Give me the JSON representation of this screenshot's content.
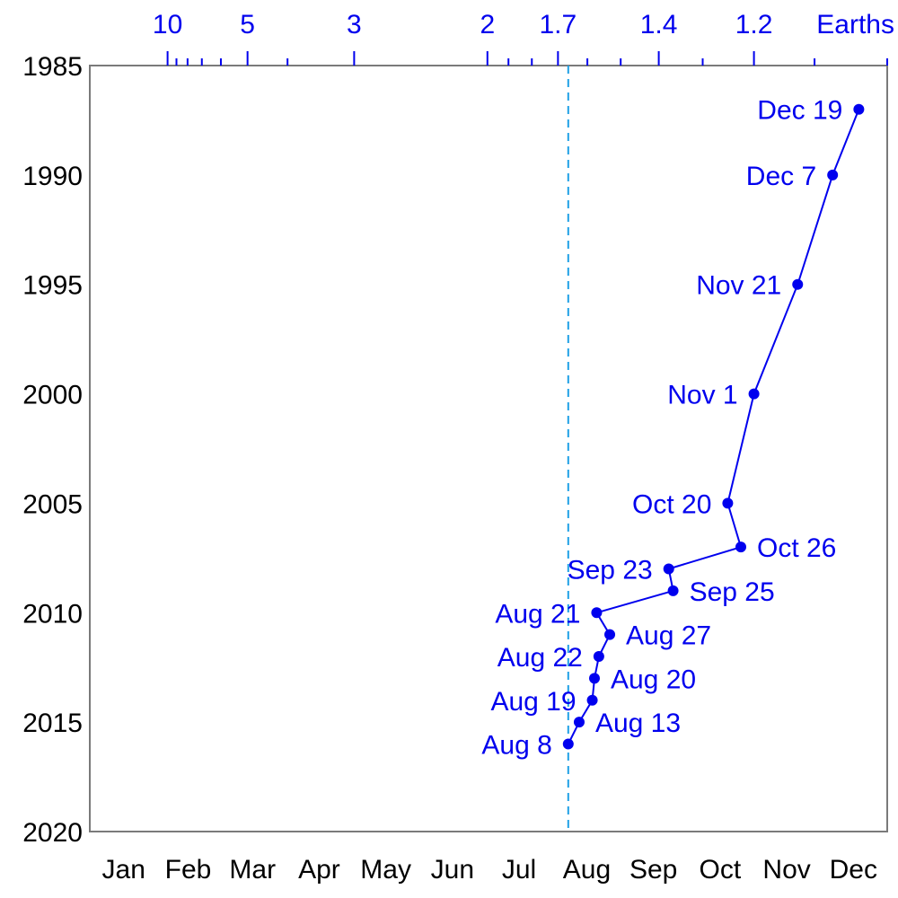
{
  "chart_data": {
    "type": "line",
    "title": "",
    "xlabel": "",
    "ylabel": "",
    "x_axis": {
      "categories": [
        "Jan",
        "Feb",
        "Mar",
        "Apr",
        "May",
        "Jun",
        "Jul",
        "Aug",
        "Sep",
        "Oct",
        "Nov",
        "Dec"
      ],
      "xlim_day_of_year": [
        1,
        366
      ]
    },
    "y_axis": {
      "ticks": [
        "1985",
        "1990",
        "1995",
        "2000",
        "2005",
        "2010",
        "2015",
        "2020"
      ],
      "ylim": [
        1985,
        2020
      ],
      "inverted": true
    },
    "top_axis": {
      "unit_label": "Earths",
      "labeled_ticks": [
        {
          "label": "10",
          "value": 10
        },
        {
          "label": "5",
          "value": 5
        },
        {
          "label": "3",
          "value": 3
        },
        {
          "label": "2",
          "value": 2
        },
        {
          "label": "1.7",
          "value": 1.7
        },
        {
          "label": "1.4",
          "value": 1.4
        },
        {
          "label": "1.2",
          "value": 1.2
        }
      ],
      "minor_ticks": [
        9,
        8,
        7,
        6,
        4,
        1.9,
        1.8,
        1.6,
        1.5,
        1.3,
        1.1,
        1.0
      ]
    },
    "reference_line": {
      "date": "Aug 8",
      "style": "dashed",
      "color": "#1ea0e6"
    },
    "series": [
      {
        "color": "#0000ee",
        "points": [
          {
            "year": 1987,
            "date": "Dec 19",
            "label_side": "left"
          },
          {
            "year": 1990,
            "date": "Dec 7",
            "label_side": "left"
          },
          {
            "year": 1995,
            "date": "Nov 21",
            "label_side": "left"
          },
          {
            "year": 2000,
            "date": "Nov 1",
            "label_side": "left"
          },
          {
            "year": 2005,
            "date": "Oct 20",
            "label_side": "left"
          },
          {
            "year": 2007,
            "date": "Oct 26",
            "label_side": "right"
          },
          {
            "year": 2008,
            "date": "Sep 23",
            "label_side": "left"
          },
          {
            "year": 2009,
            "date": "Sep 25",
            "label_side": "right"
          },
          {
            "year": 2010,
            "date": "Aug 21",
            "label_side": "left"
          },
          {
            "year": 2011,
            "date": "Aug 27",
            "label_side": "right"
          },
          {
            "year": 2012,
            "date": "Aug 22",
            "label_side": "left"
          },
          {
            "year": 2013,
            "date": "Aug 20",
            "label_side": "right"
          },
          {
            "year": 2014,
            "date": "Aug 19",
            "label_side": "left"
          },
          {
            "year": 2015,
            "date": "Aug 13",
            "label_side": "right"
          },
          {
            "year": 2016,
            "date": "Aug 8",
            "label_side": "left"
          }
        ]
      }
    ]
  }
}
